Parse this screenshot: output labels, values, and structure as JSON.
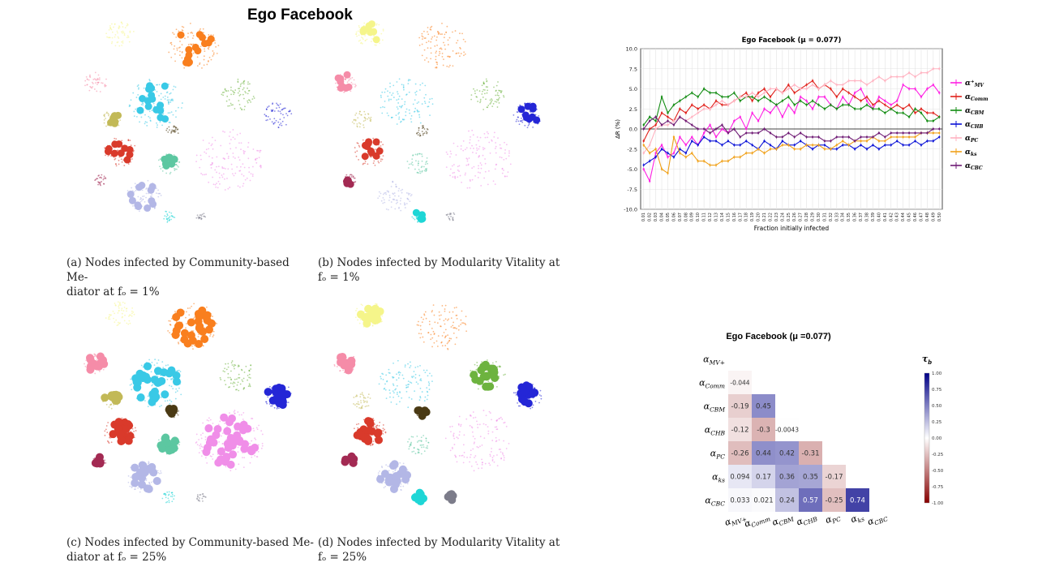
{
  "title": "Ego Facebook",
  "panels": [
    {
      "id": "a",
      "caption_line1": "(a) Nodes infected by Community-based Me-",
      "caption_line2": "diator at fₒ = 1%"
    },
    {
      "id": "b",
      "caption_line1": "(b) Nodes infected by Modularity Vitality at",
      "caption_line2": "fₒ = 1%"
    },
    {
      "id": "c",
      "caption_line1": "(c) Nodes infected by Community-based Me-",
      "caption_line2": "diator at fₒ = 25%"
    },
    {
      "id": "d",
      "caption_line1": "(d) Nodes infected by Modularity Vitality at",
      "caption_line2": "fₒ = 25%"
    }
  ],
  "community_colors": [
    "#f5f58a",
    "#f97f1e",
    "#6db33f",
    "#2426d6",
    "#f08ee8",
    "#39c9e6",
    "#d93a2b",
    "#b3b7e6",
    "#5cc7a1",
    "#f58ca8",
    "#c2b957",
    "#4a3a14",
    "#a32a53",
    "#1ed6d6",
    "#7c7c8a"
  ],
  "chart_data": [
    {
      "type": "line",
      "title": "Ego Facebook (μ = 0.077)",
      "xlabel": "Fraction initially infected",
      "ylabel": "ΔR (%)",
      "ylim": [
        -10,
        10
      ],
      "yticks": [
        "-10.0",
        "-7.5",
        "-5.0",
        "-2.5",
        "0.0",
        "2.5",
        "5.0",
        "7.5",
        "10.0"
      ],
      "x": [
        0.01,
        0.02,
        0.03,
        0.04,
        0.05,
        0.06,
        0.07,
        0.08,
        0.09,
        0.1,
        0.11,
        0.12,
        0.13,
        0.14,
        0.15,
        0.16,
        0.17,
        0.18,
        0.19,
        0.2,
        0.21,
        0.22,
        0.23,
        0.24,
        0.25,
        0.26,
        0.27,
        0.28,
        0.29,
        0.3,
        0.31,
        0.32,
        0.33,
        0.34,
        0.35,
        0.36,
        0.37,
        0.38,
        0.39,
        0.4,
        0.41,
        0.42,
        0.43,
        0.44,
        0.45,
        0.46,
        0.47,
        0.48,
        0.49,
        0.5
      ],
      "grid": true,
      "legend_position": "right",
      "series": [
        {
          "name": "α⁺_MV",
          "color": "#ff1fe3",
          "values": [
            -5,
            -6.5,
            -3,
            -2,
            -3.5,
            -3,
            -1,
            -2,
            -1,
            -2,
            -0.5,
            0.5,
            -1,
            0,
            -0.5,
            1,
            1.5,
            0,
            2,
            1,
            2.5,
            2,
            3,
            1.5,
            3,
            2,
            4,
            3.5,
            2.5,
            4,
            4,
            3,
            2.5,
            4,
            3,
            4.5,
            5,
            3.5,
            2.5,
            4,
            3.5,
            3,
            3.5,
            5.5,
            5,
            5,
            4,
            5,
            5.5,
            4.5
          ]
        },
        {
          "name": "α_Comm",
          "color": "#e0211b",
          "values": [
            -1.5,
            0,
            0.5,
            2,
            1.5,
            1,
            2.5,
            2,
            3,
            2.5,
            3,
            2.5,
            3.5,
            3,
            3,
            3.5,
            4,
            4.5,
            3.5,
            4.5,
            5,
            4,
            5,
            4.5,
            5.5,
            4.5,
            5,
            5.5,
            6,
            5,
            5.5,
            5,
            4,
            5,
            4.5,
            4,
            3.5,
            4,
            3,
            3.5,
            3,
            2.5,
            3,
            2.5,
            3,
            2,
            2.5,
            2,
            2,
            1.5
          ]
        },
        {
          "name": "α_CBM",
          "color": "#138c13",
          "values": [
            0.5,
            1.5,
            1,
            4,
            2,
            3,
            3.5,
            4,
            4.5,
            4,
            5,
            4.5,
            4.5,
            4,
            4,
            4.5,
            3.5,
            4,
            4,
            3.5,
            4,
            3.5,
            3,
            3.5,
            4,
            3,
            3.5,
            3,
            3.5,
            3,
            2.5,
            3,
            2.5,
            3,
            3,
            2.5,
            2.5,
            3,
            2.5,
            2.5,
            2,
            2.5,
            2,
            2,
            1.5,
            2.5,
            2,
            1,
            1,
            1.5
          ]
        },
        {
          "name": "α_CHB",
          "color": "#0a12d6",
          "values": [
            -4.5,
            -4,
            -3.5,
            -2.5,
            -3,
            -3.5,
            -2.5,
            -3,
            -1.5,
            -2,
            -1,
            -1.5,
            -1.5,
            -2,
            -1.5,
            -2,
            -2,
            -1.5,
            -2,
            -2.5,
            -1.5,
            -2,
            -2.5,
            -1.5,
            -2,
            -2,
            -1.5,
            -2,
            -2.5,
            -2,
            -2,
            -2.5,
            -2.5,
            -2,
            -2,
            -2.5,
            -2,
            -2.5,
            -2,
            -2.5,
            -2,
            -2,
            -1.5,
            -2,
            -2,
            -1.5,
            -2,
            -1.5,
            -1.5,
            -1
          ]
        },
        {
          "name": "α_PC",
          "color": "#ffb3c1",
          "values": [
            -3,
            -2,
            0,
            0.5,
            0.5,
            1,
            1.5,
            1,
            1.5,
            2,
            2.5,
            2.5,
            3,
            3.5,
            3,
            3.5,
            4,
            4,
            4.5,
            4,
            4.5,
            5,
            5,
            4.5,
            5,
            5.5,
            5,
            5,
            5.5,
            5,
            5.5,
            6,
            5.5,
            5.5,
            6,
            6,
            6,
            5.5,
            6,
            6.5,
            6,
            6.5,
            6.5,
            6.5,
            7,
            6.5,
            7,
            7,
            7.5,
            7.5
          ]
        },
        {
          "name": "α_ks",
          "color": "#f0a11a",
          "values": [
            -2,
            -3,
            -2.5,
            -5,
            -5.5,
            -1,
            -3,
            -3.5,
            -3,
            -4,
            -4,
            -4.5,
            -4.5,
            -4,
            -4,
            -3.5,
            -3.5,
            -3,
            -3,
            -2.5,
            -3,
            -2.5,
            -2.5,
            -2,
            -2,
            -2.5,
            -2.5,
            -2,
            -2,
            -2,
            -2.5,
            -2.5,
            -2,
            -1.5,
            -2,
            -1.5,
            -1.5,
            -1.5,
            -1,
            -1.5,
            -1.5,
            -1,
            -1,
            -1,
            -1,
            -1,
            -0.5,
            -0.5,
            -0.5,
            -0.5
          ]
        },
        {
          "name": "α_CBC",
          "color": "#6e1a74",
          "values": [
            0,
            1,
            1.5,
            0.5,
            1,
            0.5,
            1.5,
            1,
            0.5,
            0,
            0,
            -0.5,
            0,
            0.5,
            -0.5,
            0,
            -1,
            -0.5,
            -0.5,
            -0.5,
            0,
            -0.5,
            -1,
            -1,
            -0.5,
            -1,
            -0.5,
            -1,
            -1,
            -1,
            -1.5,
            -1.5,
            -1,
            -1,
            -1,
            -1.5,
            -1,
            -1,
            -1,
            -0.5,
            -1,
            -0.5,
            -0.5,
            -0.5,
            -0.5,
            -0.5,
            -0.5,
            -0.5,
            0,
            0
          ]
        }
      ]
    },
    {
      "type": "heatmap",
      "title": "Ego Facebook (μ =0.077)",
      "colorbar_label": "τ_b",
      "colorbar_ticks": [
        "1.00",
        "0.75",
        "0.50",
        "0.25",
        "0.00",
        "-0.25",
        "-0.50",
        "-0.75",
        "-1.00"
      ],
      "vmin": -1,
      "vmax": 1,
      "rows": [
        "MV+",
        "Comm",
        "CBM",
        "CHB",
        "PC",
        "ks",
        "CBC"
      ],
      "cols": [
        "MV+",
        "Comm",
        "CBM",
        "CHB",
        "PC",
        "ks",
        "CBC"
      ],
      "cells": [
        {
          "r": 1,
          "c": 0,
          "v": -0.044,
          "label": "-0.044"
        },
        {
          "r": 2,
          "c": 0,
          "v": -0.19,
          "label": "-0.19"
        },
        {
          "r": 2,
          "c": 1,
          "v": 0.45,
          "label": "0.45"
        },
        {
          "r": 3,
          "c": 0,
          "v": -0.12,
          "label": "-0.12"
        },
        {
          "r": 3,
          "c": 1,
          "v": -0.3,
          "label": "-0.3"
        },
        {
          "r": 3,
          "c": 2,
          "v": -0.0043,
          "label": "-0.0043"
        },
        {
          "r": 4,
          "c": 0,
          "v": -0.26,
          "label": "-0.26"
        },
        {
          "r": 4,
          "c": 1,
          "v": 0.44,
          "label": "0.44"
        },
        {
          "r": 4,
          "c": 2,
          "v": 0.42,
          "label": "0.42"
        },
        {
          "r": 4,
          "c": 3,
          "v": -0.31,
          "label": "-0.31"
        },
        {
          "r": 5,
          "c": 0,
          "v": 0.094,
          "label": "0.094"
        },
        {
          "r": 5,
          "c": 1,
          "v": 0.17,
          "label": "0.17"
        },
        {
          "r": 5,
          "c": 2,
          "v": 0.36,
          "label": "0.36"
        },
        {
          "r": 5,
          "c": 3,
          "v": 0.35,
          "label": "0.35"
        },
        {
          "r": 5,
          "c": 4,
          "v": -0.17,
          "label": "-0.17"
        },
        {
          "r": 6,
          "c": 0,
          "v": 0.033,
          "label": "0.033"
        },
        {
          "r": 6,
          "c": 1,
          "v": 0.021,
          "label": "0.021"
        },
        {
          "r": 6,
          "c": 2,
          "v": 0.24,
          "label": "0.24"
        },
        {
          "r": 6,
          "c": 3,
          "v": 0.57,
          "label": "0.57"
        },
        {
          "r": 6,
          "c": 4,
          "v": -0.25,
          "label": "-0.25"
        },
        {
          "r": 6,
          "c": 5,
          "v": 0.74,
          "label": "0.74"
        }
      ]
    }
  ]
}
